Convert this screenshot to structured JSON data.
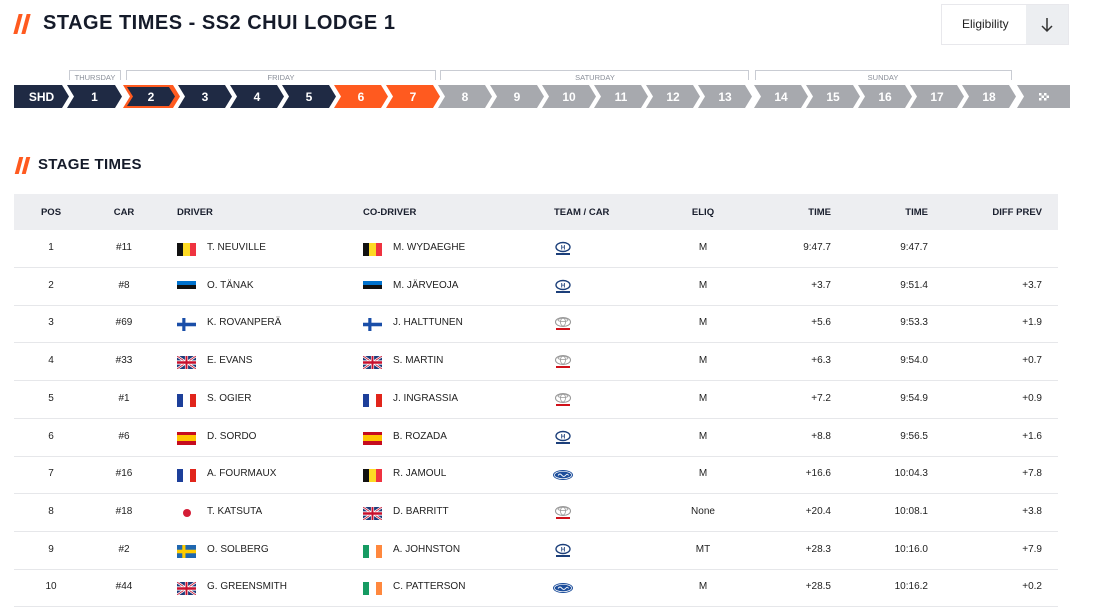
{
  "header": {
    "title": "STAGE TIMES - SS2 CHUI LODGE 1",
    "eligibility_label": "Eligibility",
    "eligibility_icon": "arrow-down-icon"
  },
  "days": [
    "THURSDAY",
    "FRIDAY",
    "SATURDAY",
    "SUNDAY"
  ],
  "stages": [
    {
      "label": "SHD",
      "state": "completed"
    },
    {
      "label": "1",
      "state": "completed"
    },
    {
      "label": "2",
      "state": "current"
    },
    {
      "label": "3",
      "state": "completed"
    },
    {
      "label": "4",
      "state": "completed"
    },
    {
      "label": "5",
      "state": "completed"
    },
    {
      "label": "6",
      "state": "live"
    },
    {
      "label": "7",
      "state": "live"
    },
    {
      "label": "8",
      "state": "upcoming"
    },
    {
      "label": "9",
      "state": "upcoming"
    },
    {
      "label": "10",
      "state": "upcoming"
    },
    {
      "label": "11",
      "state": "upcoming"
    },
    {
      "label": "12",
      "state": "upcoming"
    },
    {
      "label": "13",
      "state": "upcoming"
    },
    {
      "label": "14",
      "state": "upcoming"
    },
    {
      "label": "15",
      "state": "upcoming"
    },
    {
      "label": "16",
      "state": "upcoming"
    },
    {
      "label": "17",
      "state": "upcoming"
    },
    {
      "label": "18",
      "state": "upcoming"
    },
    {
      "label": "",
      "state": "finish",
      "icon": "finish-flag-icon"
    }
  ],
  "section": {
    "title": "STAGE TIMES"
  },
  "table": {
    "columns": [
      "POS",
      "CAR",
      "DRIVER",
      "CO-DRIVER",
      "TEAM / CAR",
      "ELIQ",
      "TIME",
      "TIME",
      "DIFF PREV"
    ],
    "rows": [
      {
        "pos": "1",
        "car": "#11",
        "driver": "T. NEUVILLE",
        "driver_flag": "belgium",
        "codriver": "M. WYDAEGHE",
        "codriver_flag": "belgium",
        "team": "hyundai",
        "eliq": "M",
        "diff_first": "9:47.7",
        "time": "9:47.7",
        "diff_prev": ""
      },
      {
        "pos": "2",
        "car": "#8",
        "driver": "O. TÄNAK",
        "driver_flag": "estonia",
        "codriver": "M. JÄRVEOJA",
        "codriver_flag": "estonia",
        "team": "hyundai",
        "eliq": "M",
        "diff_first": "+3.7",
        "time": "9:51.4",
        "diff_prev": "+3.7"
      },
      {
        "pos": "3",
        "car": "#69",
        "driver": "K. ROVANPERÄ",
        "driver_flag": "finland",
        "codriver": "J. HALTTUNEN",
        "codriver_flag": "finland",
        "team": "toyota",
        "eliq": "M",
        "diff_first": "+5.6",
        "time": "9:53.3",
        "diff_prev": "+1.9"
      },
      {
        "pos": "4",
        "car": "#33",
        "driver": "E. EVANS",
        "driver_flag": "uk",
        "codriver": "S. MARTIN",
        "codriver_flag": "uk",
        "team": "toyota",
        "eliq": "M",
        "diff_first": "+6.3",
        "time": "9:54.0",
        "diff_prev": "+0.7"
      },
      {
        "pos": "5",
        "car": "#1",
        "driver": "S. OGIER",
        "driver_flag": "france",
        "codriver": "J. INGRASSIA",
        "codriver_flag": "france",
        "team": "toyota",
        "eliq": "M",
        "diff_first": "+7.2",
        "time": "9:54.9",
        "diff_prev": "+0.9"
      },
      {
        "pos": "6",
        "car": "#6",
        "driver": "D. SORDO",
        "driver_flag": "spain",
        "codriver": "B. ROZADA",
        "codriver_flag": "spain",
        "team": "hyundai",
        "eliq": "M",
        "diff_first": "+8.8",
        "time": "9:56.5",
        "diff_prev": "+1.6"
      },
      {
        "pos": "7",
        "car": "#16",
        "driver": "A. FOURMAUX",
        "driver_flag": "france",
        "codriver": "R. JAMOUL",
        "codriver_flag": "belgium",
        "team": "ford",
        "eliq": "M",
        "diff_first": "+16.6",
        "time": "10:04.3",
        "diff_prev": "+7.8"
      },
      {
        "pos": "8",
        "car": "#18",
        "driver": "T. KATSUTA",
        "driver_flag": "japan",
        "codriver": "D. BARRITT",
        "codriver_flag": "uk",
        "team": "toyota",
        "eliq": "None",
        "diff_first": "+20.4",
        "time": "10:08.1",
        "diff_prev": "+3.8"
      },
      {
        "pos": "9",
        "car": "#2",
        "driver": "O. SOLBERG",
        "driver_flag": "sweden",
        "codriver": "A. JOHNSTON",
        "codriver_flag": "ireland",
        "team": "hyundai",
        "eliq": "MT",
        "diff_first": "+28.3",
        "time": "10:16.0",
        "diff_prev": "+7.9"
      },
      {
        "pos": "10",
        "car": "#44",
        "driver": "G. GREENSMITH",
        "driver_flag": "uk",
        "codriver": "C. PATTERSON",
        "codriver_flag": "ireland",
        "team": "ford",
        "eliq": "M",
        "diff_first": "+28.5",
        "time": "10:16.2",
        "diff_prev": "+0.2"
      }
    ]
  },
  "colors": {
    "accent": "#ff5a1f",
    "navy": "#1f2a44",
    "grey": "#a7a9ae"
  }
}
